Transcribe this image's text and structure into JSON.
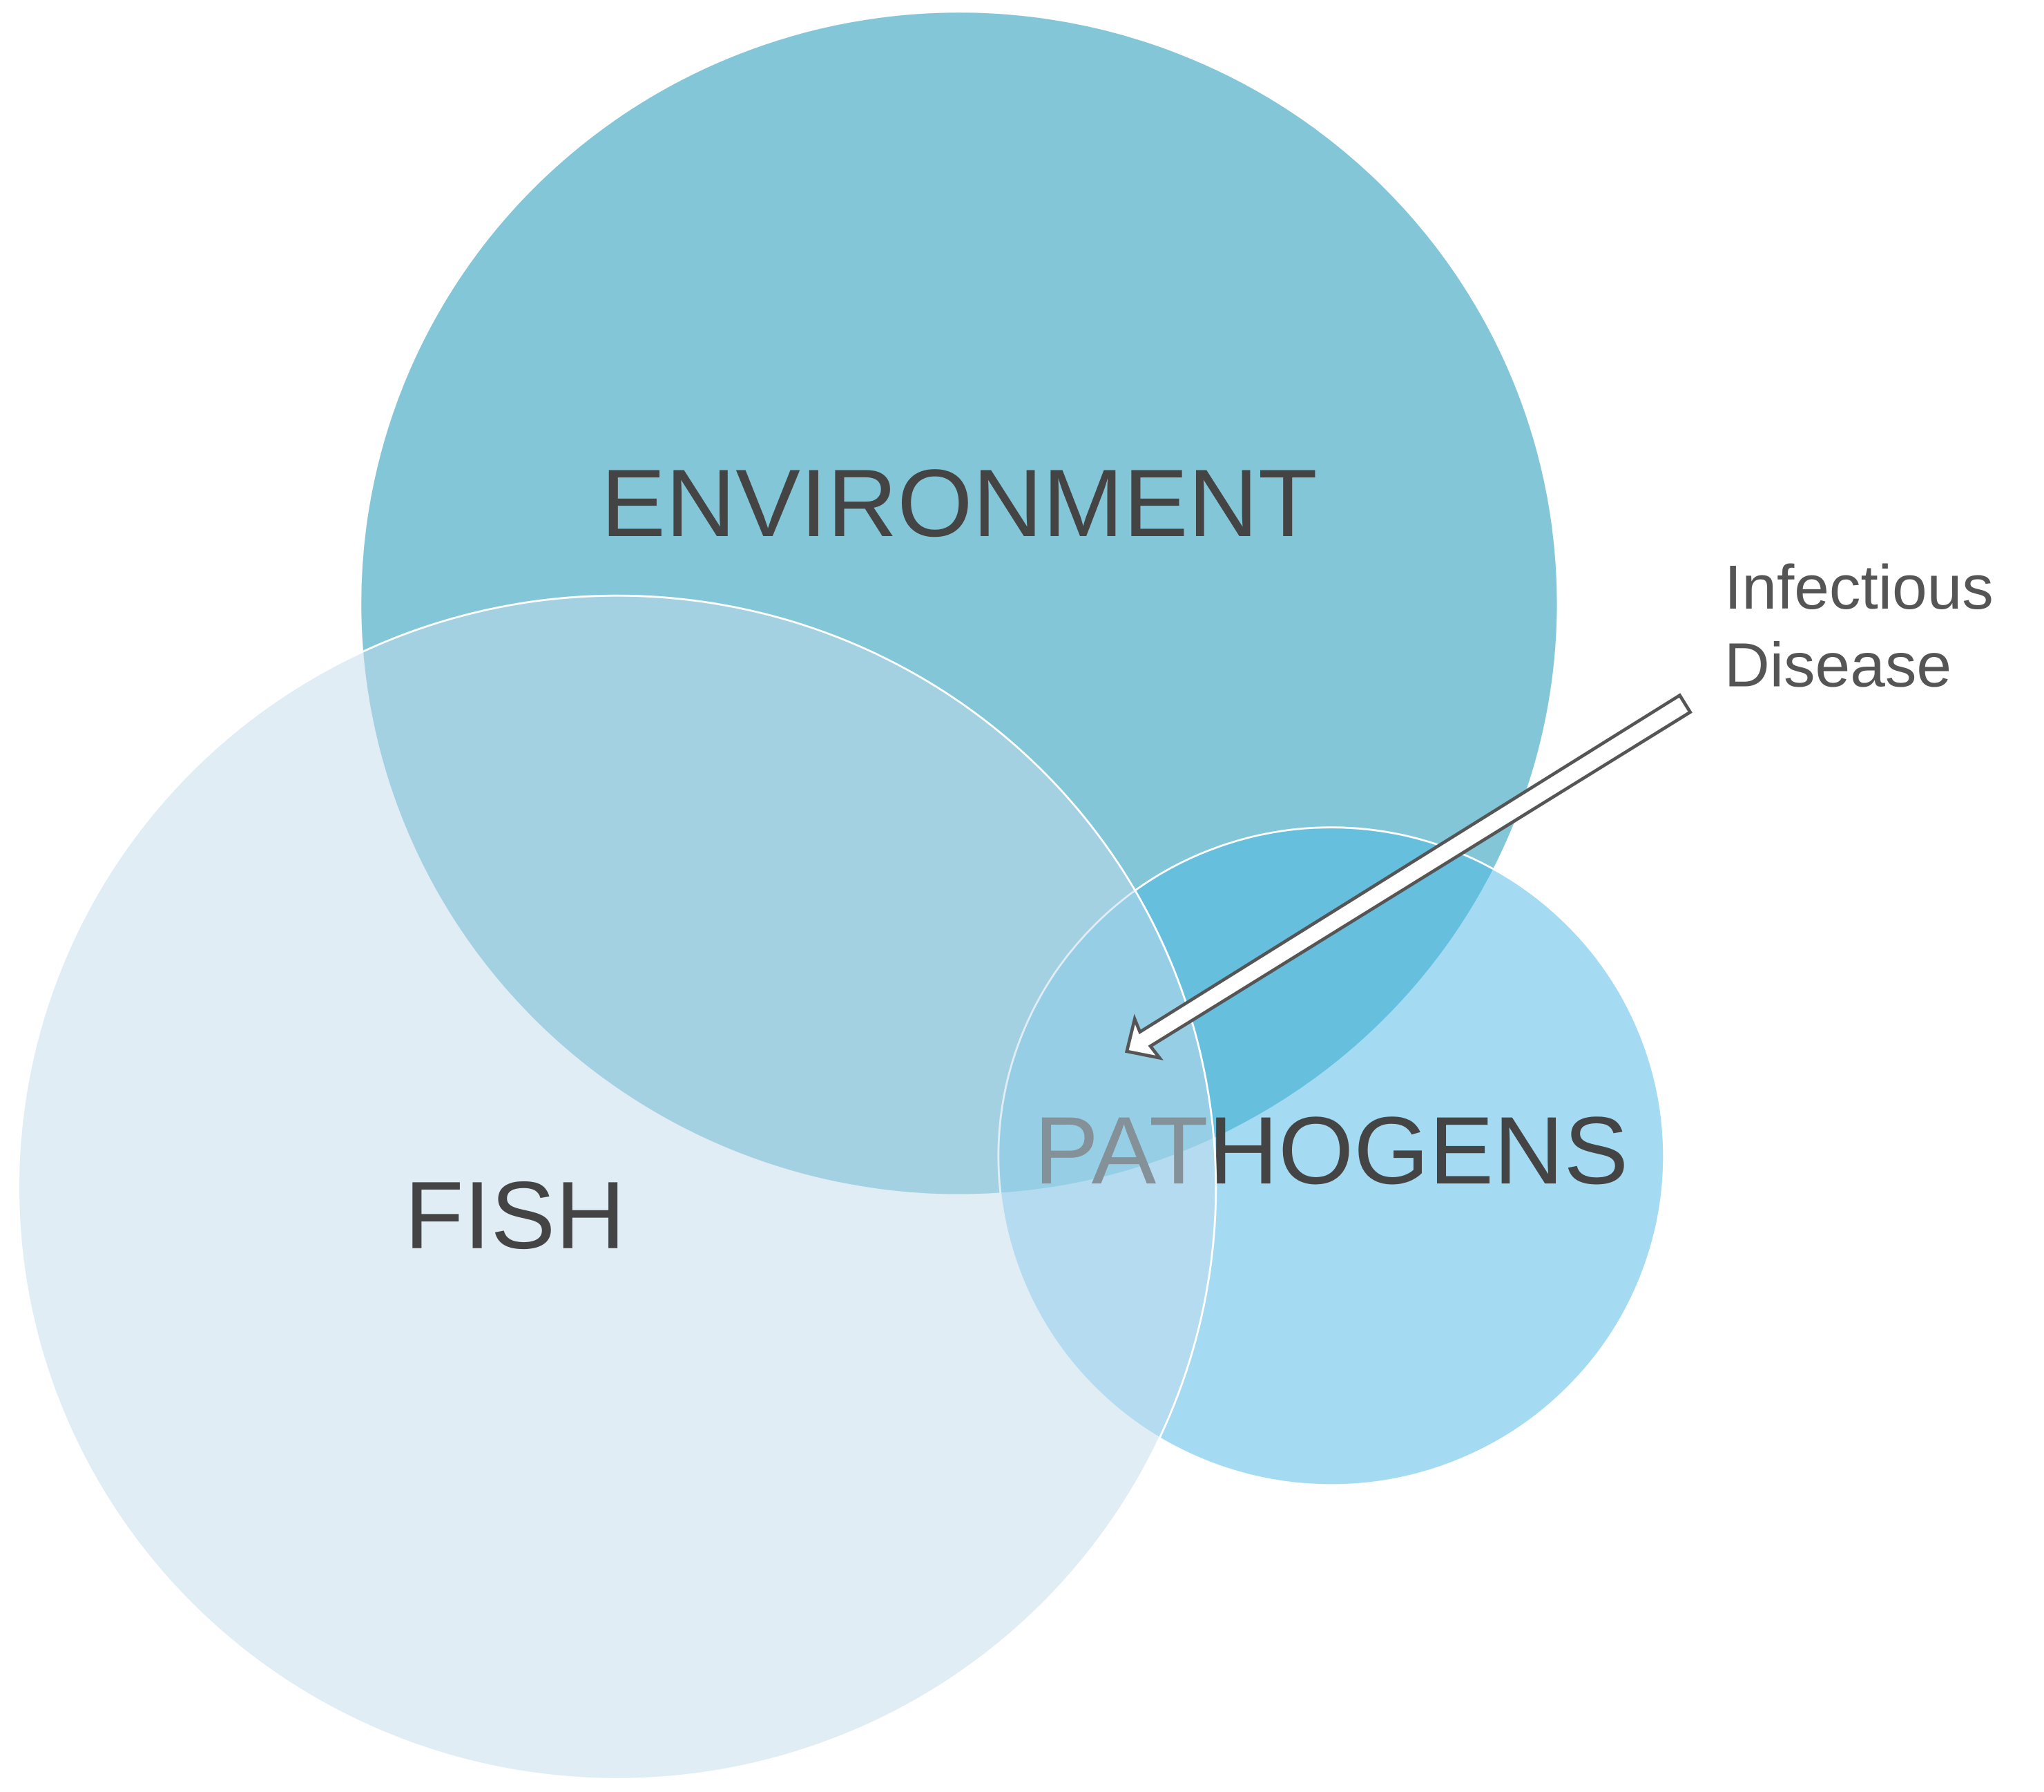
{
  "nodes": [
    {
      "label": "ENVIRONMENT"
    },
    {
      "label": "PATHOGENS"
    },
    {
      "label": "FISH"
    }
  ],
  "annotation": {
    "lines": [
      "Infectious",
      "Disease"
    ]
  }
}
